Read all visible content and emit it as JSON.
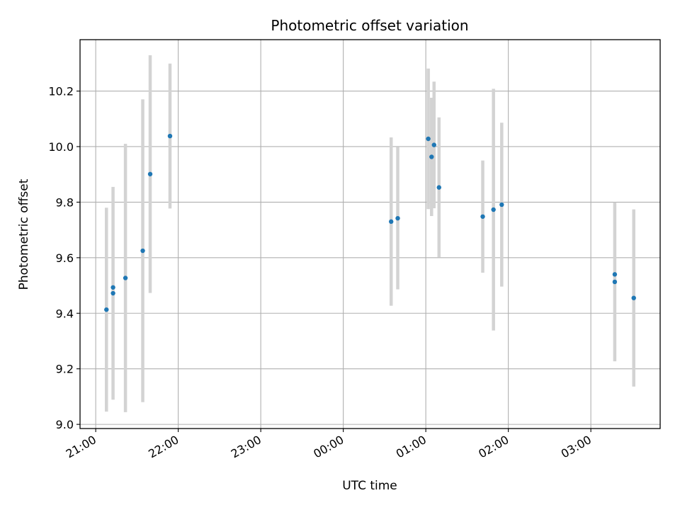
{
  "chart_data": {
    "type": "scatter",
    "title": "Photometric offset variation",
    "xlabel": "UTC time",
    "ylabel": "Photometric offset",
    "x_unit": "hour",
    "xlim": [
      20.81,
      27.84
    ],
    "ylim": [
      8.985,
      10.385
    ],
    "x_ticks": [
      21,
      22,
      23,
      24,
      25,
      26,
      27
    ],
    "x_tick_labels": [
      "21:00",
      "22:00",
      "23:00",
      "00:00",
      "01:00",
      "02:00",
      "03:00"
    ],
    "y_ticks": [
      9.0,
      9.2,
      9.4,
      9.6,
      9.8,
      10.0,
      10.2
    ],
    "y_tick_labels": [
      "9.0",
      "9.2",
      "9.4",
      "9.6",
      "9.8",
      "10.0",
      "10.2"
    ],
    "grid": true,
    "marker_color": "#1f77b4",
    "errorbar_color": "#d3d3d3",
    "points": [
      {
        "x": 21.13,
        "y": 9.413,
        "err": 0.367
      },
      {
        "x": 21.21,
        "y": 9.472,
        "err": 0.383
      },
      {
        "x": 21.21,
        "y": 9.493,
        "err": 0.0
      },
      {
        "x": 21.36,
        "y": 9.527,
        "err": 0.483
      },
      {
        "x": 21.57,
        "y": 9.625,
        "err": 0.545
      },
      {
        "x": 21.66,
        "y": 9.901,
        "err": 0.428
      },
      {
        "x": 21.9,
        "y": 10.038,
        "err": 0.261
      },
      {
        "x": 24.58,
        "y": 9.73,
        "err": 0.303
      },
      {
        "x": 24.66,
        "y": 9.742,
        "err": 0.256
      },
      {
        "x": 25.03,
        "y": 10.028,
        "err": 0.253
      },
      {
        "x": 25.07,
        "y": 9.963,
        "err": 0.213
      },
      {
        "x": 25.1,
        "y": 10.006,
        "err": 0.228
      },
      {
        "x": 25.16,
        "y": 9.853,
        "err": 0.252
      },
      {
        "x": 25.69,
        "y": 9.748,
        "err": 0.202
      },
      {
        "x": 25.82,
        "y": 9.773,
        "err": 0.435
      },
      {
        "x": 25.92,
        "y": 9.791,
        "err": 0.295
      },
      {
        "x": 27.29,
        "y": 9.54,
        "err": 0.0
      },
      {
        "x": 27.29,
        "y": 9.513,
        "err": 0.286
      },
      {
        "x": 27.52,
        "y": 9.455,
        "err": 0.319
      }
    ]
  }
}
